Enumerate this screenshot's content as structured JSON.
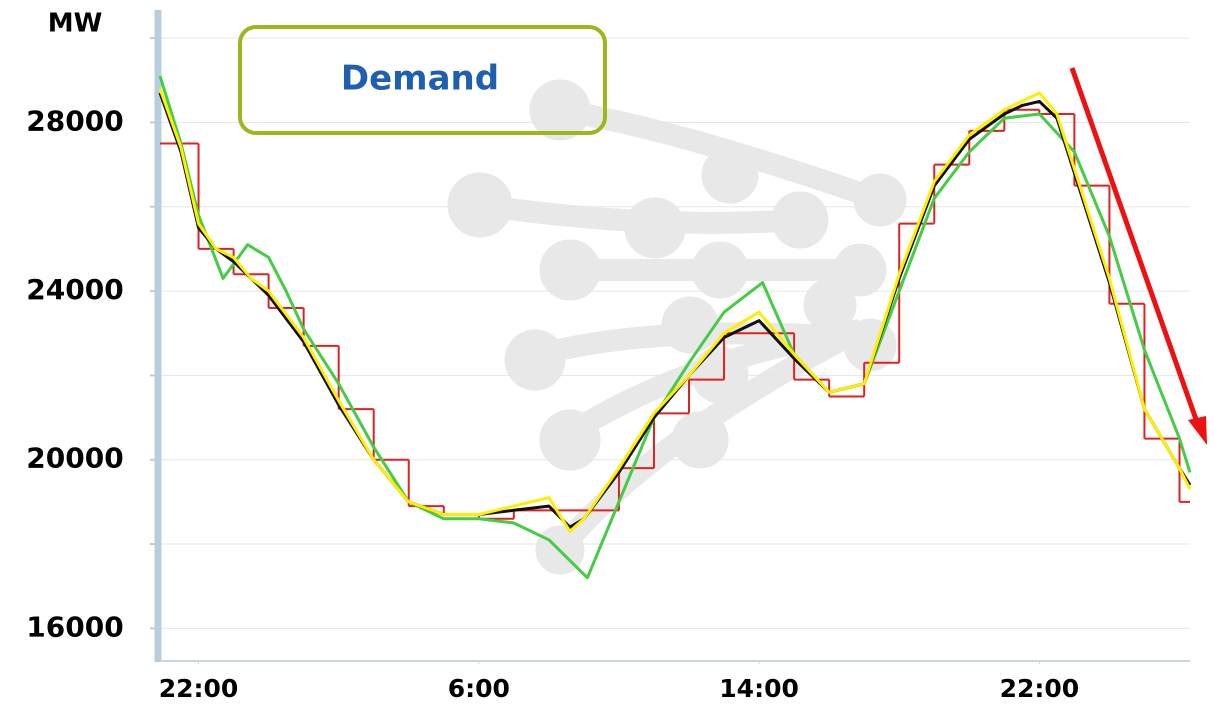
{
  "chart_data": {
    "type": "line",
    "title": "Demand",
    "y_label": "MW",
    "xlim": [
      -1.1,
      28.3
    ],
    "xticks": [
      {
        "value": 0,
        "label": "22:00"
      },
      {
        "value": 8,
        "label": "6:00"
      },
      {
        "value": 16,
        "label": "14:00"
      },
      {
        "value": 24,
        "label": "22:00"
      }
    ],
    "ylim": [
      15250,
      30050
    ],
    "yticks": [
      16000,
      20000,
      24000,
      28000
    ],
    "minor_yticks": [
      18000,
      22000,
      26000,
      30000
    ],
    "grid": true,
    "series": [
      {
        "color": "#dd2222",
        "step": true,
        "x": [
          -1.1,
          0,
          1,
          2,
          3,
          4,
          5,
          6,
          7,
          8,
          9,
          10,
          11,
          12,
          13,
          14,
          15,
          16,
          17,
          18,
          19,
          20,
          21,
          22,
          23,
          24,
          25,
          26,
          27,
          28
        ],
        "values": [
          27500,
          25000,
          24400,
          23600,
          22700,
          21200,
          20000,
          18900,
          18700,
          18600,
          18800,
          18800,
          18800,
          19800,
          21100,
          21900,
          23000,
          23000,
          21900,
          21500,
          22300,
          25600,
          27000,
          27800,
          28300,
          28200,
          26500,
          23700,
          20500,
          19000
        ]
      },
      {
        "color": "#44cc44",
        "x": [
          -1.1,
          -0.5,
          0,
          0.7,
          1.4,
          2,
          2.5,
          3,
          4,
          5,
          6,
          7,
          8,
          9,
          10,
          11.1,
          12,
          13,
          14,
          15,
          16.1,
          17,
          18,
          19,
          20,
          21,
          22,
          23,
          24,
          25,
          26,
          27,
          28,
          28.3
        ],
        "values": [
          29100,
          27500,
          25800,
          24300,
          25100,
          24800,
          24000,
          23100,
          21800,
          20300,
          19000,
          18600,
          18600,
          18500,
          18100,
          17200,
          19000,
          21000,
          22300,
          23500,
          24200,
          22500,
          21600,
          21800,
          24000,
          26200,
          27300,
          28100,
          28200,
          27300,
          25300,
          22600,
          20500,
          19700
        ]
      },
      {
        "color": "#111111",
        "x": [
          -1.1,
          -0.5,
          0,
          0.5,
          1,
          1.5,
          2,
          3,
          4,
          5,
          6,
          7,
          8,
          9,
          10,
          10.6,
          11,
          12,
          13,
          14,
          15,
          16,
          17,
          18,
          19,
          20,
          21,
          22,
          23,
          23.5,
          24,
          24.5,
          25,
          26,
          27,
          28,
          28.3
        ],
        "values": [
          28700,
          27300,
          25500,
          25000,
          24700,
          24300,
          23900,
          22800,
          21300,
          20000,
          19000,
          18700,
          18700,
          18800,
          18900,
          18400,
          18600,
          19700,
          21000,
          22000,
          22900,
          23300,
          22400,
          21600,
          21800,
          24300,
          26500,
          27600,
          28200,
          28400,
          28500,
          28100,
          26800,
          24200,
          21200,
          19800,
          19400
        ]
      },
      {
        "color": "#ffee00",
        "x": [
          -1.1,
          -0.5,
          0,
          0.5,
          1,
          1.5,
          2,
          3,
          4,
          5,
          6,
          7,
          8,
          9,
          10,
          10.6,
          11,
          12,
          13,
          14,
          15,
          16,
          17,
          18,
          19,
          20,
          21,
          22,
          23,
          23.5,
          24,
          24.5,
          25,
          26,
          27,
          28,
          28.3
        ],
        "values": [
          28800,
          27400,
          25600,
          25000,
          24800,
          24300,
          24000,
          22900,
          21400,
          20000,
          19000,
          18700,
          18700,
          18900,
          19100,
          18300,
          18600,
          19800,
          21100,
          22000,
          23000,
          23500,
          22500,
          21600,
          21800,
          24400,
          26600,
          27700,
          28300,
          28500,
          28700,
          28200,
          26900,
          24300,
          21200,
          19800,
          19300
        ]
      }
    ]
  }
}
